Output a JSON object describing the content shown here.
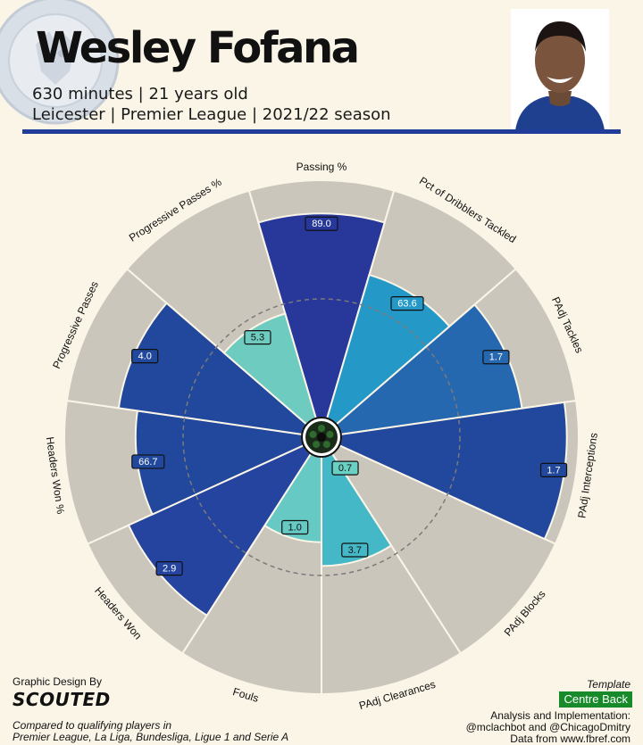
{
  "header": {
    "name": "Wesley Fofana",
    "subtitle_1": "630 minutes | 21 years old",
    "subtitle_2": "Leicester | Premier League | 2021/22 season"
  },
  "chart_data": {
    "type": "radar-pizza",
    "categories": [
      "Passing %",
      "Pct of Dribblers Tackled",
      "PAdj Tackles",
      "PAdj Interceptions",
      "PAdj Blocks",
      "PAdj Clearances",
      "Fouls",
      "Headers Won",
      "Headers Won %",
      "Progressive Passes",
      "Progressive Passes %"
    ],
    "percentiles": [
      86,
      63,
      77,
      95,
      0,
      46,
      36,
      81,
      70,
      78,
      46
    ],
    "value_labels": [
      "89.0",
      "63.6",
      "1.7",
      "1.7",
      "0.7",
      "3.7",
      "1.0",
      "2.9",
      "66.7",
      "4.0",
      "5.3"
    ],
    "colors": [
      "#27389a",
      "#2499c8",
      "#2568b0",
      "#21489c",
      "#6ad0c3",
      "#44b8c6",
      "#66c9c3",
      "#24449f",
      "#21489c",
      "#21489c",
      "#6dcbbf"
    ],
    "background_color": "#cac6bc",
    "reference_percentile": 50,
    "rlim": [
      0,
      100
    ]
  },
  "footer": {
    "credit_label": "Graphic Design By",
    "logo_text": "SCOUTED",
    "comparison_1": "Compared to qualifying players in",
    "comparison_2": "Premier League, La Liga, Bundesliga, Ligue 1 and Serie A",
    "template_label": "Template",
    "template_value": "Centre Back",
    "analysis_label": "Analysis and Implementation:",
    "analysis_names": "@mclachbot and @ChicagoDmitry",
    "data_source": "Data from www.fbref.com"
  },
  "icons": {
    "crest": "leicester-crest-icon",
    "portrait": "player-portrait-icon",
    "ball": "soccer-ball-icon"
  }
}
